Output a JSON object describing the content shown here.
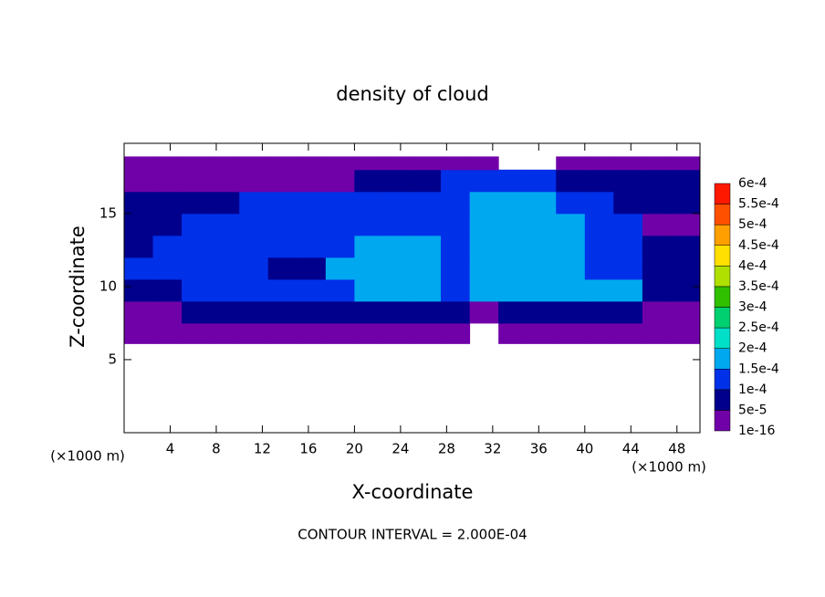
{
  "chart_data": {
    "type": "contour",
    "title": "density of cloud",
    "xlabel": "X-coordinate",
    "ylabel": "Z-coordinate",
    "x_unit_label": "(×1000 m)",
    "y_unit_label": "(×1000 m)",
    "footnote": "CONTOUR INTERVAL = 2.000E-04",
    "xlim": [
      0,
      50
    ],
    "ylim": [
      0,
      19.8
    ],
    "xticks": [
      4,
      8,
      12,
      16,
      20,
      24,
      28,
      32,
      36,
      40,
      44,
      48
    ],
    "yticks": [
      5,
      10,
      15
    ],
    "levels": [
      {
        "value": 1e-16,
        "label": "1e-16"
      },
      {
        "value": 5e-05,
        "label": "5e-5"
      },
      {
        "value": 0.0001,
        "label": "1e-4"
      },
      {
        "value": 0.00015,
        "label": "1.5e-4"
      },
      {
        "value": 0.0002,
        "label": "2e-4"
      },
      {
        "value": 0.00025,
        "label": "2.5e-4"
      },
      {
        "value": 0.0003,
        "label": "3e-4"
      },
      {
        "value": 0.00035,
        "label": "3.5e-4"
      },
      {
        "value": 0.0004,
        "label": "4e-4"
      },
      {
        "value": 0.00045,
        "label": "4.5e-4"
      },
      {
        "value": 0.0005,
        "label": "5e-4"
      },
      {
        "value": 0.00055,
        "label": "5.5e-4"
      },
      {
        "value": 0.0006,
        "label": "6e-4"
      }
    ],
    "colors": [
      "#7000a8",
      "#00008c",
      "#0030e8",
      "#00a8f0",
      "#00e0c8",
      "#00d070",
      "#30c000",
      "#b0e000",
      "#ffe000",
      "#ffa000",
      "#ff5000",
      "#ff1800"
    ],
    "x_edges": [
      0,
      2.5,
      5,
      7.5,
      10,
      12.5,
      15,
      17.5,
      20,
      22.5,
      25,
      27.5,
      30,
      32.5,
      35,
      37.5,
      40,
      42.5,
      45,
      47.5,
      50
    ],
    "z_edges": [
      6.1,
      7.5,
      9,
      10.5,
      12,
      13.5,
      15,
      16.5,
      18,
      18.9
    ],
    "z": [
      [
        3e-05,
        3e-05,
        3e-05,
        3e-05,
        3e-05,
        3e-05,
        3e-05,
        3e-05,
        3e-05,
        3e-05,
        3e-05,
        3e-05,
        null,
        3e-05,
        3e-05,
        3e-05,
        3e-05,
        3e-05,
        3e-05,
        3e-05
      ],
      [
        3e-05,
        3e-05,
        7e-05,
        7e-05,
        7e-05,
        7e-05,
        7e-05,
        7e-05,
        7e-05,
        7e-05,
        7e-05,
        7e-05,
        3e-05,
        7e-05,
        7e-05,
        7e-05,
        7e-05,
        7e-05,
        3e-05,
        3e-05
      ],
      [
        7e-05,
        7e-05,
        0.00012,
        0.00012,
        0.00012,
        0.00012,
        0.00012,
        0.00012,
        0.00016,
        0.00016,
        0.00016,
        0.00012,
        0.00016,
        0.00016,
        0.00016,
        0.00016,
        0.00016,
        0.00016,
        7e-05,
        7e-05
      ],
      [
        0.00012,
        0.00012,
        0.00012,
        0.00012,
        0.00012,
        7e-05,
        7e-05,
        0.00017,
        0.00017,
        0.00017,
        0.00017,
        0.00012,
        0.00017,
        0.00017,
        0.00017,
        0.00017,
        0.00012,
        0.00012,
        7e-05,
        7e-05
      ],
      [
        7e-05,
        0.00012,
        0.00012,
        0.00012,
        0.00012,
        0.00012,
        0.00012,
        0.00012,
        0.00017,
        0.00017,
        0.00017,
        0.00012,
        0.00017,
        0.00017,
        0.00017,
        0.00017,
        0.00012,
        0.00012,
        7e-05,
        7e-05
      ],
      [
        7e-05,
        7e-05,
        0.00012,
        0.00012,
        0.00012,
        0.00012,
        0.00012,
        0.00012,
        0.00012,
        0.00012,
        0.00012,
        0.00012,
        0.00017,
        0.00017,
        0.00017,
        0.00017,
        0.00012,
        0.00012,
        3e-05,
        3e-05
      ],
      [
        7e-05,
        7e-05,
        7e-05,
        7e-05,
        0.00012,
        0.00012,
        0.00012,
        0.00012,
        0.00012,
        0.00012,
        0.00012,
        0.00012,
        0.00017,
        0.00017,
        0.00017,
        0.00012,
        0.00012,
        7e-05,
        7e-05,
        7e-05
      ],
      [
        3e-05,
        3e-05,
        3e-05,
        3e-05,
        3e-05,
        3e-05,
        3e-05,
        3e-05,
        7e-05,
        7e-05,
        7e-05,
        0.00012,
        0.00012,
        0.00012,
        0.00012,
        7e-05,
        7e-05,
        7e-05,
        7e-05,
        7e-05
      ],
      [
        3e-05,
        3e-05,
        3e-05,
        3e-05,
        3e-05,
        3e-05,
        3e-05,
        3e-05,
        3e-05,
        3e-05,
        3e-05,
        3e-05,
        3e-05,
        null,
        null,
        3e-05,
        3e-05,
        3e-05,
        3e-05,
        3e-05
      ]
    ]
  }
}
